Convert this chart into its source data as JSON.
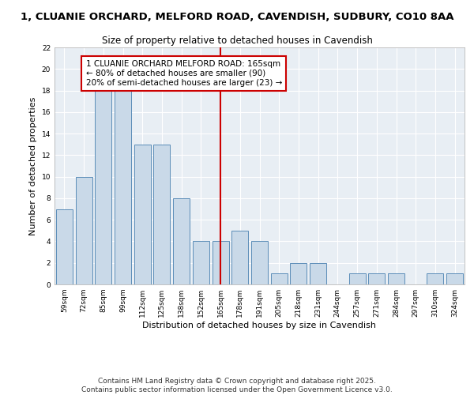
{
  "title_line1": "1, CLUANIE ORCHARD, MELFORD ROAD, CAVENDISH, SUDBURY, CO10 8AA",
  "title_line2": "Size of property relative to detached houses in Cavendish",
  "xlabel": "Distribution of detached houses by size in Cavendish",
  "ylabel": "Number of detached properties",
  "categories": [
    "59sqm",
    "72sqm",
    "85sqm",
    "99sqm",
    "112sqm",
    "125sqm",
    "138sqm",
    "152sqm",
    "165sqm",
    "178sqm",
    "191sqm",
    "205sqm",
    "218sqm",
    "231sqm",
    "244sqm",
    "257sqm",
    "271sqm",
    "284sqm",
    "297sqm",
    "310sqm",
    "324sqm"
  ],
  "values": [
    7,
    10,
    18,
    18,
    13,
    13,
    8,
    4,
    4,
    5,
    4,
    1,
    2,
    2,
    0,
    1,
    1,
    1,
    0,
    1,
    1
  ],
  "bar_color": "#c9d9e8",
  "bar_edge_color": "#5b8db8",
  "highlight_line_index": 8,
  "highlight_color": "#cc0000",
  "annotation_text": "1 CLUANIE ORCHARD MELFORD ROAD: 165sqm\n← 80% of detached houses are smaller (90)\n20% of semi-detached houses are larger (23) →",
  "annotation_box_color": "#ffffff",
  "annotation_box_edge": "#cc0000",
  "ylim": [
    0,
    22
  ],
  "yticks": [
    0,
    2,
    4,
    6,
    8,
    10,
    12,
    14,
    16,
    18,
    20,
    22
  ],
  "background_color": "#e8eef4",
  "footer_text": "Contains HM Land Registry data © Crown copyright and database right 2025.\nContains public sector information licensed under the Open Government Licence v3.0.",
  "title_fontsize": 9.5,
  "subtitle_fontsize": 8.5,
  "axis_label_fontsize": 8,
  "tick_fontsize": 6.5,
  "annotation_fontsize": 7.5,
  "footer_fontsize": 6.5
}
